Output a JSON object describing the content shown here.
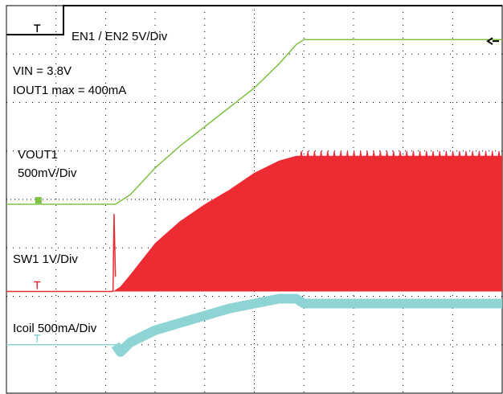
{
  "labels": {
    "en": "EN1 / EN2 5V/Div",
    "vin": "VIN = 3.8V",
    "iout": "IOUT1 max = 400mA",
    "vout_name": "VOUT1",
    "vout_scale": "500mV/Div",
    "sw": "SW1 1V/Div",
    "icoil": "Icoil 500mA/Div"
  },
  "colors": {
    "en": "#000000",
    "vout": "#7dc242",
    "sw": "#ed2b33",
    "icoil": "#8fd4d4",
    "grid": "#000000"
  },
  "chart_data": {
    "type": "line",
    "grid": true,
    "divisions": {
      "x": 10,
      "y": 8
    },
    "series": [
      {
        "name": "EN1 / EN2 5V/Div",
        "points": [
          [
            0,
            7.4
          ],
          [
            1.15,
            7.4
          ],
          [
            1.15,
            8.0
          ],
          [
            10,
            8.0
          ]
        ]
      },
      {
        "name": "VOUT1 500mV/Div",
        "points": [
          [
            0,
            3.9
          ],
          [
            2.2,
            3.9
          ],
          [
            2.5,
            4.1
          ],
          [
            3.0,
            4.65
          ],
          [
            3.5,
            5.1
          ],
          [
            4.0,
            5.5
          ],
          [
            4.5,
            5.9
          ],
          [
            5.0,
            6.3
          ],
          [
            5.5,
            6.8
          ],
          [
            5.85,
            7.2
          ],
          [
            6.0,
            7.3
          ],
          [
            10,
            7.3
          ]
        ]
      },
      {
        "name": "SW1 1V/Div",
        "envelope": [
          [
            2.15,
            2.1
          ],
          [
            2.3,
            2.2
          ],
          [
            2.5,
            2.45
          ],
          [
            3.0,
            3.1
          ],
          [
            3.5,
            3.55
          ],
          [
            4.0,
            3.9
          ],
          [
            4.5,
            4.2
          ],
          [
            5.0,
            4.55
          ],
          [
            5.5,
            4.8
          ],
          [
            5.85,
            4.9
          ],
          [
            10,
            4.9
          ]
        ],
        "baseline": 2.1
      },
      {
        "name": "Icoil 500mA/Div",
        "points": [
          [
            0,
            1.0
          ],
          [
            2.2,
            1.0
          ],
          [
            2.3,
            0.85
          ],
          [
            2.5,
            1.05
          ],
          [
            3.0,
            1.3
          ],
          [
            3.5,
            1.45
          ],
          [
            4.0,
            1.6
          ],
          [
            4.5,
            1.75
          ],
          [
            5.0,
            1.85
          ],
          [
            5.5,
            1.95
          ],
          [
            5.85,
            1.95
          ],
          [
            6.0,
            1.85
          ],
          [
            10,
            1.85
          ]
        ]
      }
    ]
  }
}
